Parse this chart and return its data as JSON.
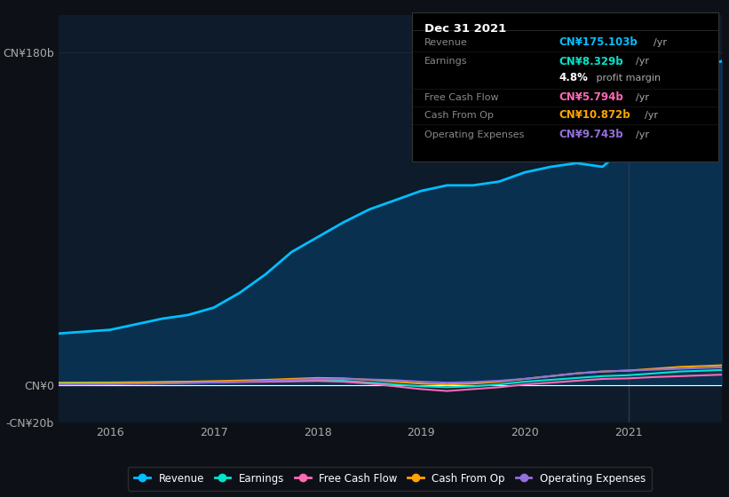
{
  "bg_color": "#0d1117",
  "plot_bg_color": "#0d1b2a",
  "grid_color": "#1e2d40",
  "title": "Dec 31 2021",
  "tooltip_bg": "#000000",
  "tooltip_border": "#333333",
  "tooltip_rows": [
    {
      "label": "Revenue",
      "value": "CN¥175.103b /yr",
      "color": "#00bfff"
    },
    {
      "label": "Earnings",
      "value": "CN¥8.329b /yr",
      "color": "#00e5cc"
    },
    {
      "label": "",
      "value": "4.8% profit margin",
      "color": "#ffffff"
    },
    {
      "label": "Free Cash Flow",
      "value": "CN¥5.794b /yr",
      "color": "#ff69b4"
    },
    {
      "label": "Cash From Op",
      "value": "CN¥10.872b /yr",
      "color": "#ffa500"
    },
    {
      "label": "Operating Expenses",
      "value": "CN¥9.743b /yr",
      "color": "#9370db"
    }
  ],
  "years": [
    2015.5,
    2016,
    2016.25,
    2016.5,
    2016.75,
    2017,
    2017.25,
    2017.5,
    2017.75,
    2018,
    2018.25,
    2018.5,
    2018.75,
    2019,
    2019.25,
    2019.5,
    2019.75,
    2020,
    2020.25,
    2020.5,
    2020.75,
    2021,
    2021.25,
    2021.5,
    2021.75,
    2021.9
  ],
  "revenue": [
    28,
    30,
    33,
    36,
    38,
    42,
    50,
    60,
    72,
    80,
    88,
    95,
    100,
    105,
    108,
    108,
    110,
    115,
    118,
    120,
    118,
    130,
    155,
    170,
    173,
    175
  ],
  "earnings": [
    1.5,
    1.6,
    1.7,
    1.8,
    1.9,
    2.0,
    2.1,
    2.3,
    2.5,
    2.7,
    2.5,
    1.5,
    0.5,
    -0.5,
    -1,
    -0.5,
    0.5,
    2.0,
    3.0,
    4.0,
    5.0,
    5.5,
    6.5,
    7.5,
    8.0,
    8.329
  ],
  "free_cash_flow": [
    1.0,
    1.1,
    1.2,
    1.3,
    1.5,
    1.6,
    1.8,
    2.0,
    2.2,
    2.4,
    2.0,
    1.0,
    -0.5,
    -2.0,
    -3.0,
    -2.0,
    -1.0,
    0.5,
    1.5,
    2.5,
    3.5,
    3.8,
    4.5,
    5.0,
    5.5,
    5.794
  ],
  "cash_from_op": [
    1.2,
    1.3,
    1.5,
    1.7,
    2.0,
    2.3,
    2.6,
    3.0,
    3.5,
    4.0,
    3.8,
    3.0,
    2.0,
    1.0,
    0.5,
    1.0,
    2.0,
    3.5,
    5.0,
    6.5,
    7.5,
    8.0,
    9.0,
    10.0,
    10.5,
    10.872
  ],
  "op_expenses": [
    0.5,
    0.6,
    0.8,
    1.0,
    1.3,
    1.6,
    2.0,
    2.5,
    3.0,
    3.5,
    3.5,
    3.2,
    2.8,
    2.0,
    1.5,
    1.8,
    2.5,
    3.5,
    5.0,
    6.5,
    7.5,
    8.0,
    8.5,
    9.0,
    9.5,
    9.743
  ],
  "revenue_color": "#00bfff",
  "earnings_color": "#00e5cc",
  "free_cash_color": "#ff69b4",
  "cash_op_color": "#ffa500",
  "op_exp_color": "#9370db",
  "fill_color": "#0a3050",
  "ylim_min": -20,
  "ylim_max": 200,
  "yticks": [
    -20,
    0,
    60,
    120,
    180
  ],
  "ytick_labels": [
    "-CN¥20b",
    "CN¥0",
    "",
    "",
    "CN¥180b"
  ],
  "xticks": [
    2016,
    2017,
    2018,
    2019,
    2020,
    2021
  ],
  "legend_items": [
    {
      "label": "Revenue",
      "color": "#00bfff"
    },
    {
      "label": "Earnings",
      "color": "#00e5cc"
    },
    {
      "label": "Free Cash Flow",
      "color": "#ff69b4"
    },
    {
      "label": "Cash From Op",
      "color": "#ffa500"
    },
    {
      "label": "Operating Expenses",
      "color": "#9370db"
    }
  ]
}
